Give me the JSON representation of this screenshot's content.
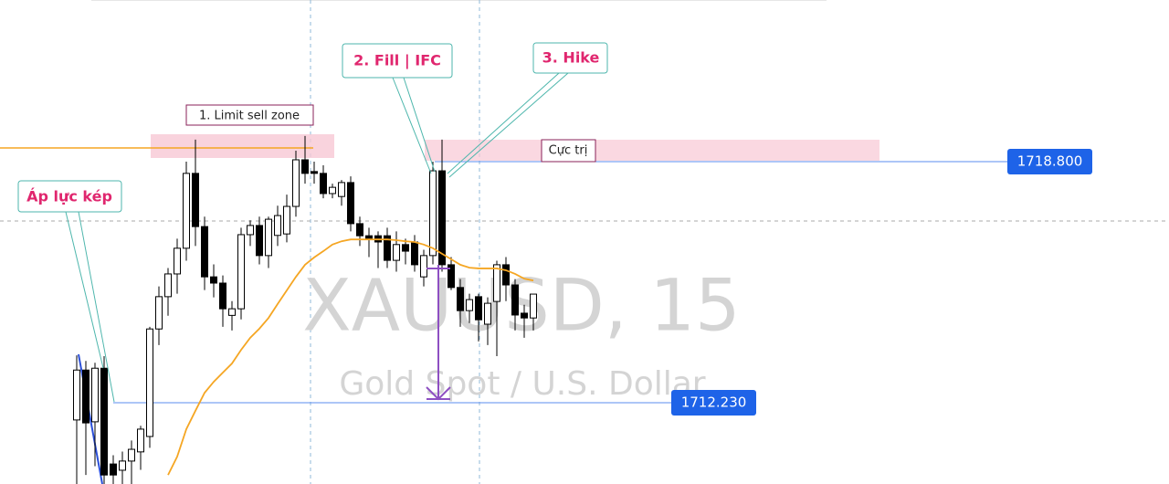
{
  "chart_data": {
    "type": "candlestick",
    "title": "XAUUSD, 15",
    "subtitle": "Gold Spot / U.S. Dollar",
    "ylim": [
      1710.015,
      1723.205
    ],
    "open": [
      1711.76,
      1713.12,
      1711.71,
      1713.17,
      1710.56,
      1710.39,
      1710.64,
      1710.89,
      1711.31,
      1714.24,
      1715.12,
      1715.74,
      1716.44,
      1718.48,
      1717.03,
      1715.66,
      1715.49,
      1714.61,
      1714.79,
      1716.81,
      1717.06,
      1716.24,
      1716.79,
      1716.83,
      1717.58,
      1718.85,
      1718.53,
      1718.48,
      1717.93,
      1717.85,
      1718.23,
      1717.11,
      1716.78,
      1716.78,
      1716.78,
      1716.11,
      1716.54,
      1716.61,
      1715.66,
      1716.24,
      1718.55,
      1715.99,
      1715.37,
      1714.74,
      1715.12,
      1714.37,
      1714.99,
      1715.99,
      1715.44,
      1714.67,
      1714.54
    ],
    "high": [
      1713.52,
      1713.37,
      1713.32,
      1713.5,
      1710.8,
      1710.9,
      1711.2,
      1711.6,
      1714.3,
      1715.4,
      1715.9,
      1716.7,
      1718.8,
      1719.4,
      1717.3,
      1716.0,
      1715.7,
      1715.0,
      1717.0,
      1717.2,
      1717.3,
      1717.3,
      1717.6,
      1717.9,
      1719.1,
      1719.5,
      1718.8,
      1718.7,
      1718.2,
      1718.3,
      1718.4,
      1717.3,
      1717.0,
      1716.9,
      1717.0,
      1716.9,
      1716.7,
      1716.8,
      1716.4,
      1718.8,
      1719.4,
      1716.2,
      1715.6,
      1715.2,
      1715.2,
      1715.1,
      1716.1,
      1716.2,
      1715.6,
      1714.9,
      1715.1
    ],
    "low": [
      1710.01,
      1710.26,
      1710.5,
      1710.01,
      1710.01,
      1710.01,
      1710.01,
      1710.4,
      1711.0,
      1713.8,
      1714.6,
      1715.2,
      1716.1,
      1716.5,
      1715.3,
      1715.1,
      1714.3,
      1714.2,
      1714.5,
      1716.5,
      1716.0,
      1715.9,
      1716.5,
      1716.6,
      1717.3,
      1718.2,
      1718.2,
      1717.8,
      1717.8,
      1717.6,
      1716.9,
      1716.5,
      1716.2,
      1715.9,
      1715.9,
      1715.8,
      1716.0,
      1715.8,
      1715.4,
      1716.0,
      1715.8,
      1715.3,
      1714.3,
      1714.4,
      1713.9,
      1713.8,
      1713.5,
      1715.0,
      1714.2,
      1714.0,
      1714.2
    ],
    "close": [
      1713.12,
      1711.68,
      1713.17,
      1710.26,
      1710.26,
      1710.64,
      1710.96,
      1711.51,
      1714.24,
      1715.12,
      1715.74,
      1716.44,
      1718.48,
      1717.03,
      1715.66,
      1715.49,
      1714.79,
      1714.79,
      1716.81,
      1717.06,
      1716.24,
      1717.23,
      1717.33,
      1717.58,
      1718.85,
      1718.48,
      1718.48,
      1717.93,
      1718.1,
      1718.23,
      1717.11,
      1716.78,
      1716.68,
      1716.61,
      1716.11,
      1716.54,
      1716.36,
      1715.99,
      1716.24,
      1718.55,
      1715.99,
      1715.37,
      1714.74,
      1715.04,
      1714.49,
      1714.94,
      1715.99,
      1715.44,
      1714.62,
      1714.54,
      1715.19
    ],
    "ma": {
      "color": "#f5a623",
      "values": [
        null,
        null,
        null,
        null,
        null,
        null,
        null,
        null,
        null,
        null,
        1710.26,
        1710.76,
        1711.51,
        1712.01,
        1712.5,
        1712.8,
        1713.05,
        1713.3,
        1713.67,
        1714.0,
        1714.25,
        1714.54,
        1714.92,
        1715.29,
        1715.66,
        1715.99,
        1716.19,
        1716.36,
        1716.54,
        1716.63,
        1716.68,
        1716.68,
        1716.68,
        1716.68,
        1716.68,
        1716.66,
        1716.63,
        1716.61,
        1716.54,
        1716.44,
        1716.29,
        1716.14,
        1715.99,
        1715.91,
        1715.89,
        1715.89,
        1715.89,
        1715.84,
        1715.74,
        1715.61,
        1715.56
      ]
    },
    "price_lines": [
      {
        "value": 1718.8,
        "label": "1718.800"
      },
      {
        "value": 1712.23,
        "label": "1712.230"
      }
    ],
    "annotations": [
      "Áp lực kép",
      "1. Limit sell zone",
      "2. Fill | IFC",
      "3. Hike",
      "Cực trị"
    ]
  }
}
